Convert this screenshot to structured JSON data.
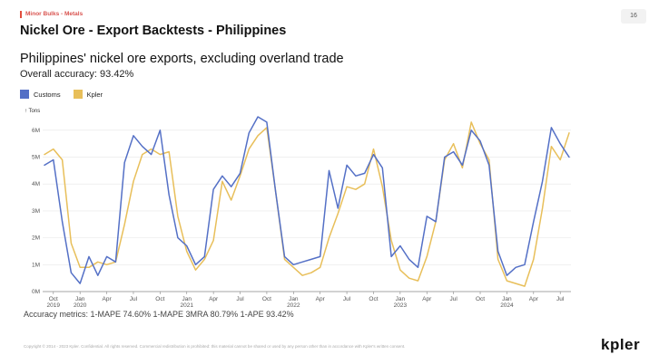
{
  "header": {
    "section_tag": "Minor Bulks - Metals",
    "page_number": "16",
    "slide_title": "Nickel Ore - Export Backtests - Philippines"
  },
  "chart_data": {
    "type": "line",
    "title": "Philippines' nickel ore exports, excluding overland trade",
    "subtitle": "Overall accuracy: 93.42%",
    "unit_label": "↑ Tons",
    "ylim": [
      0,
      6500000
    ],
    "y_ticks": [
      {
        "value": 0,
        "label": "0M"
      },
      {
        "value": 1000000,
        "label": "1M"
      },
      {
        "value": 2000000,
        "label": "2M"
      },
      {
        "value": 3000000,
        "label": "3M"
      },
      {
        "value": 4000000,
        "label": "4M"
      },
      {
        "value": 5000000,
        "label": "5M"
      },
      {
        "value": 6000000,
        "label": "6M"
      }
    ],
    "x_ticks": [
      {
        "index": 1,
        "label": "Oct",
        "year": "2019"
      },
      {
        "index": 4,
        "label": "Jan",
        "year": "2020"
      },
      {
        "index": 7,
        "label": "Apr",
        "year": ""
      },
      {
        "index": 10,
        "label": "Jul",
        "year": ""
      },
      {
        "index": 13,
        "label": "Oct",
        "year": ""
      },
      {
        "index": 16,
        "label": "Jan",
        "year": "2021"
      },
      {
        "index": 19,
        "label": "Apr",
        "year": ""
      },
      {
        "index": 22,
        "label": "Jul",
        "year": ""
      },
      {
        "index": 25,
        "label": "Oct",
        "year": ""
      },
      {
        "index": 28,
        "label": "Jan",
        "year": "2022"
      },
      {
        "index": 31,
        "label": "Apr",
        "year": ""
      },
      {
        "index": 34,
        "label": "Jul",
        "year": ""
      },
      {
        "index": 37,
        "label": "Oct",
        "year": ""
      },
      {
        "index": 40,
        "label": "Jan",
        "year": "2023"
      },
      {
        "index": 43,
        "label": "Apr",
        "year": ""
      },
      {
        "index": 46,
        "label": "Jul",
        "year": ""
      },
      {
        "index": 49,
        "label": "Oct",
        "year": ""
      },
      {
        "index": 52,
        "label": "Jan",
        "year": "2024"
      },
      {
        "index": 55,
        "label": "Apr",
        "year": ""
      },
      {
        "index": 58,
        "label": "Jul",
        "year": ""
      }
    ],
    "x_months": [
      "2019-09",
      "2019-10",
      "2019-11",
      "2019-12",
      "2020-01",
      "2020-02",
      "2020-03",
      "2020-04",
      "2020-05",
      "2020-06",
      "2020-07",
      "2020-08",
      "2020-09",
      "2020-10",
      "2020-11",
      "2020-12",
      "2021-01",
      "2021-02",
      "2021-03",
      "2021-04",
      "2021-05",
      "2021-06",
      "2021-07",
      "2021-08",
      "2021-09",
      "2021-10",
      "2021-11",
      "2021-12",
      "2022-01",
      "2022-02",
      "2022-03",
      "2022-04",
      "2022-05",
      "2022-06",
      "2022-07",
      "2022-08",
      "2022-09",
      "2022-10",
      "2022-11",
      "2022-12",
      "2023-01",
      "2023-02",
      "2023-03",
      "2023-04",
      "2023-05",
      "2023-06",
      "2023-07",
      "2023-08",
      "2023-09",
      "2023-10",
      "2023-11",
      "2023-12",
      "2024-01",
      "2024-02",
      "2024-03",
      "2024-04",
      "2024-05",
      "2024-06",
      "2024-07",
      "2024-08"
    ],
    "series": [
      {
        "name": "Customs",
        "color": "#5470c6",
        "values": [
          4700000,
          4900000,
          2600000,
          700000,
          300000,
          1300000,
          600000,
          1300000,
          1100000,
          4800000,
          5800000,
          5400000,
          5100000,
          6000000,
          3600000,
          2000000,
          1700000,
          1000000,
          1300000,
          3800000,
          4300000,
          3900000,
          4400000,
          5900000,
          6500000,
          6300000,
          3700000,
          1300000,
          1000000,
          1100000,
          1200000,
          1300000,
          4500000,
          3100000,
          4700000,
          4300000,
          4400000,
          5100000,
          4600000,
          1300000,
          1700000,
          1200000,
          900000,
          2800000,
          2600000,
          5000000,
          5200000,
          4700000,
          6000000,
          5600000,
          4700000,
          1500000,
          600000,
          900000,
          1000000,
          2600000,
          4100000,
          6100000,
          5500000,
          5000000
        ]
      },
      {
        "name": "Kpler",
        "color": "#e8bf5a",
        "values": [
          5100000,
          5300000,
          4900000,
          1800000,
          900000,
          900000,
          1100000,
          1000000,
          1100000,
          2500000,
          4100000,
          5100000,
          5300000,
          5100000,
          5200000,
          2800000,
          1500000,
          800000,
          1200000,
          1900000,
          4100000,
          3400000,
          4300000,
          5300000,
          5800000,
          6100000,
          3700000,
          1200000,
          900000,
          600000,
          700000,
          900000,
          2000000,
          2900000,
          3900000,
          3800000,
          4000000,
          5300000,
          3900000,
          1900000,
          800000,
          500000,
          400000,
          1300000,
          2600000,
          4900000,
          5500000,
          4600000,
          6300000,
          5500000,
          4900000,
          1200000,
          400000,
          300000,
          200000,
          1200000,
          3100000,
          5400000,
          4900000,
          5900000
        ]
      }
    ],
    "metrics_text": "Accuracy metrics: 1-MAPE 74.60% 1-MAPE 3MRA 80.79% 1-APE 93.42%"
  },
  "footer": {
    "copyright": "Copyright © 2014 - 2023 Kpler. Confidential. All rights reserved. Commercial redistribution is prohibited: this material cannot be shared or used by any person other than in accordance with Kpler's written consent.",
    "logo_text": "kpler"
  }
}
